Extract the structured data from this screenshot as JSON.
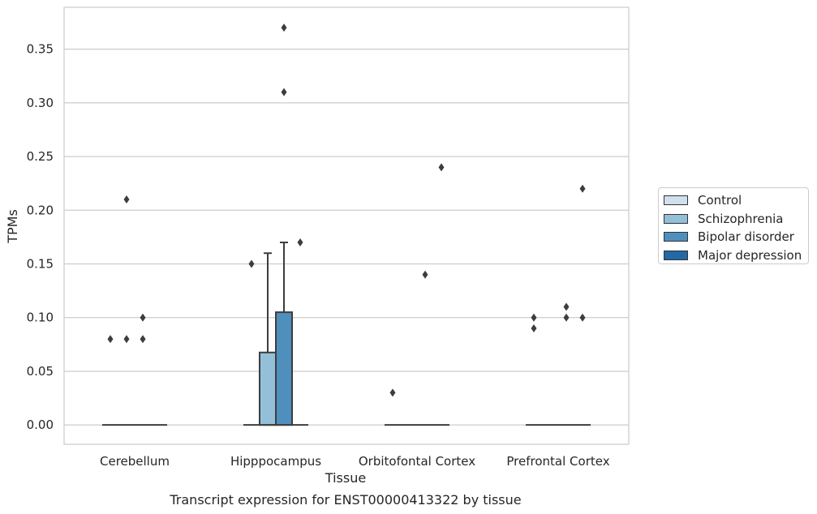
{
  "chart_data": {
    "type": "box",
    "title": "Transcript expression for ENST00000413322 by tissue",
    "xlabel": "Tissue",
    "ylabel": "TPMs",
    "ylim": [
      -0.018,
      0.389
    ],
    "yticks": [
      "0.00",
      "0.05",
      "0.10",
      "0.15",
      "0.20",
      "0.25",
      "0.30",
      "0.35"
    ],
    "yticks_values": [
      0,
      0.05,
      0.1,
      0.15,
      0.2,
      0.25,
      0.3,
      0.35
    ],
    "grid": true,
    "legend_position": "right",
    "categories": [
      "Cerebellum",
      "Hipppocampus",
      "Orbitofontal Cortex",
      "Prefrontal Cortex"
    ],
    "series": [
      {
        "name": "Control",
        "color": "#d0e0ee",
        "boxes": [
          {
            "q1": 0,
            "median": 0,
            "q3": 0,
            "whisker_low": 0,
            "whisker_high": 0,
            "outliers": [
              0.08
            ]
          },
          {
            "q1": 0,
            "median": 0,
            "q3": 0,
            "whisker_low": 0,
            "whisker_high": 0,
            "outliers": [
              0.15
            ]
          },
          {
            "q1": 0,
            "median": 0,
            "q3": 0,
            "whisker_low": 0,
            "whisker_high": 0,
            "outliers": [
              0.03
            ]
          },
          {
            "q1": 0,
            "median": 0,
            "q3": 0,
            "whisker_low": 0,
            "whisker_high": 0,
            "outliers": [
              0.09,
              0.1
            ]
          }
        ]
      },
      {
        "name": "Schizophrenia",
        "color": "#94bfd8",
        "boxes": [
          {
            "q1": 0,
            "median": 0,
            "q3": 0,
            "whisker_low": 0,
            "whisker_high": 0,
            "outliers": [
              0.08,
              0.21
            ]
          },
          {
            "q1": 0,
            "median": 0,
            "q3": 0.0675,
            "whisker_low": 0,
            "whisker_high": 0.16,
            "outliers": []
          },
          {
            "q1": 0,
            "median": 0,
            "q3": 0,
            "whisker_low": 0,
            "whisker_high": 0,
            "outliers": []
          },
          {
            "q1": 0,
            "median": 0,
            "q3": 0,
            "whisker_low": 0,
            "whisker_high": 0,
            "outliers": []
          }
        ]
      },
      {
        "name": "Bipolar disorder",
        "color": "#4f8fbd",
        "boxes": [
          {
            "q1": 0,
            "median": 0,
            "q3": 0,
            "whisker_low": 0,
            "whisker_high": 0,
            "outliers": [
              0.08,
              0.1
            ]
          },
          {
            "q1": 0,
            "median": 0,
            "q3": 0.105,
            "whisker_low": 0,
            "whisker_high": 0.17,
            "outliers": [
              0.31,
              0.37
            ]
          },
          {
            "q1": 0,
            "median": 0,
            "q3": 0,
            "whisker_low": 0,
            "whisker_high": 0,
            "outliers": [
              0.14
            ]
          },
          {
            "q1": 0,
            "median": 0,
            "q3": 0,
            "whisker_low": 0,
            "whisker_high": 0,
            "outliers": [
              0.1,
              0.11
            ]
          }
        ]
      },
      {
        "name": "Major depression",
        "color": "#2369a5",
        "boxes": [
          {
            "q1": 0,
            "median": 0,
            "q3": 0,
            "whisker_low": 0,
            "whisker_high": 0,
            "outliers": []
          },
          {
            "q1": 0,
            "median": 0,
            "q3": 0,
            "whisker_low": 0,
            "whisker_high": 0,
            "outliers": [
              0.17
            ]
          },
          {
            "q1": 0,
            "median": 0,
            "q3": 0,
            "whisker_low": 0,
            "whisker_high": 0,
            "outliers": [
              0.24
            ]
          },
          {
            "q1": 0,
            "median": 0,
            "q3": 0,
            "whisker_low": 0,
            "whisker_high": 0,
            "outliers": [
              0.1,
              0.22
            ]
          }
        ]
      }
    ]
  }
}
